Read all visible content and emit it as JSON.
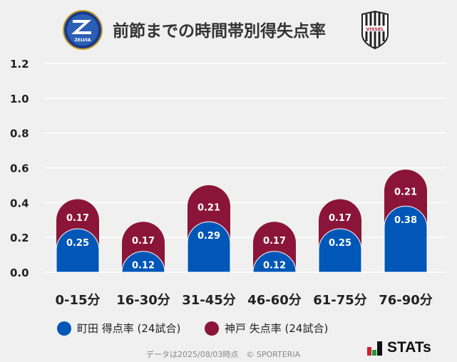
{
  "title": "前節までの時間帯別得失点率",
  "logos": {
    "home": "FC MACHIDA ZELVIA",
    "away": "VISSEL"
  },
  "colors": {
    "machida": "#0057b8",
    "kobe": "#8b1538",
    "background": "#f0f0f0",
    "grid": "#ffffff"
  },
  "chart_data": {
    "type": "bar",
    "stacked": true,
    "categories": [
      "0-15分",
      "16-30分",
      "31-45分",
      "46-60分",
      "61-75分",
      "76-90分"
    ],
    "series": [
      {
        "name": "町田 得点率 (24試合)",
        "values": [
          0.25,
          0.12,
          0.29,
          0.12,
          0.25,
          0.38
        ],
        "color": "#0057b8"
      },
      {
        "name": "神戸 失点率 (24試合)",
        "values": [
          0.17,
          0.17,
          0.21,
          0.17,
          0.17,
          0.21
        ],
        "color": "#8b1538"
      }
    ],
    "yticks": [
      "0.0",
      "0.2",
      "0.4",
      "0.6",
      "0.8",
      "1.0",
      "1.2"
    ],
    "ylim": [
      0,
      1.2
    ],
    "grid": true,
    "legend": "bottom"
  },
  "footer": {
    "note": "データは2025/08/03時点　© SPORTERIA",
    "brand": "STATs"
  }
}
